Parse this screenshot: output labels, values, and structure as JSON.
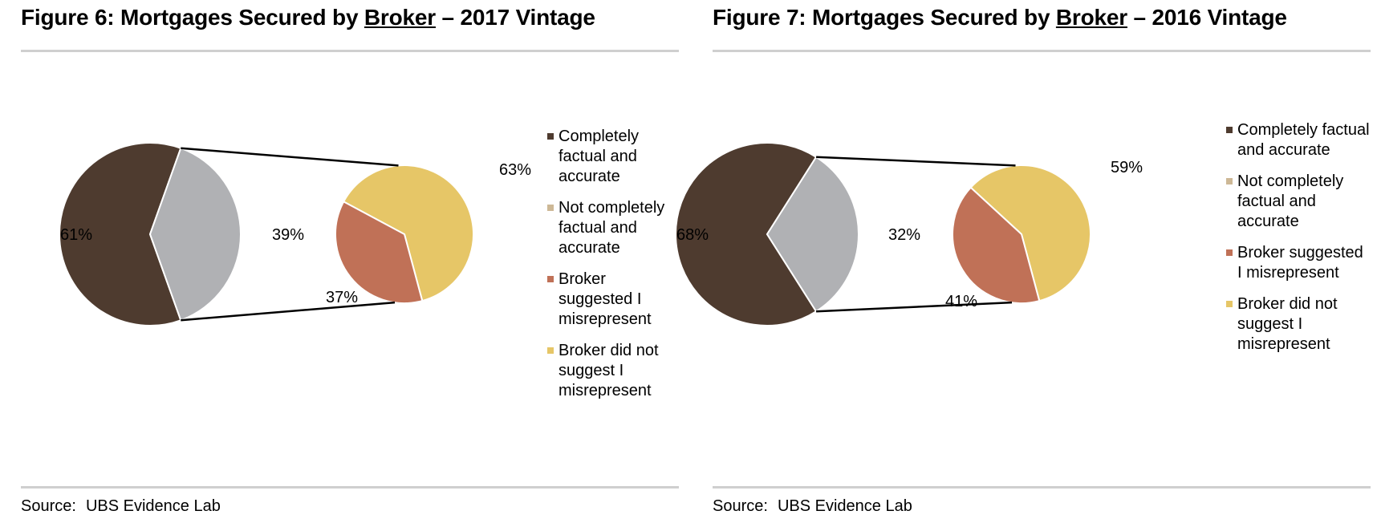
{
  "figures": [
    {
      "title_prefix": "Figure 6:  Mortgages Secured by ",
      "title_underlined": "Broker",
      "title_suffix": " – 2017 Vintage",
      "source_label": "Source:",
      "source_text": "UBS Evidence Lab"
    },
    {
      "title_prefix": "Figure 7: Mortgages Secured by ",
      "title_underlined": "Broker",
      "title_suffix": " – 2016 Vintage",
      "source_label": "Source:",
      "source_text": "UBS Evidence Lab"
    }
  ],
  "legend": [
    {
      "label": "Completely factual and accurate",
      "color": "#4e3b2f"
    },
    {
      "label": "Not completely factual and accurate",
      "color": "#cdb896"
    },
    {
      "label": "Broker suggested I misrepresent",
      "color": "#c07157"
    },
    {
      "label": "Broker did not suggest I misrepresent",
      "color": "#e6c667"
    }
  ],
  "chart_data": [
    {
      "type": "pie",
      "subtype": "pie-of-pie",
      "main_pie": {
        "labels": [
          "Completely factual and accurate",
          "Not completely factual and accurate"
        ],
        "values": [
          61,
          39
        ],
        "value_labels": [
          "61%",
          "39%"
        ],
        "colors": [
          "#4e3b2f",
          "#b0b1b4"
        ]
      },
      "secondary_pie": {
        "labels": [
          "Broker suggested I misrepresent",
          "Broker did not suggest I misrepresent"
        ],
        "values": [
          37,
          63
        ],
        "value_labels": [
          "37%",
          "63%"
        ],
        "colors": [
          "#c07157",
          "#e6c667"
        ]
      },
      "legend_position": "right"
    },
    {
      "type": "pie",
      "subtype": "pie-of-pie",
      "main_pie": {
        "labels": [
          "Completely factual and accurate",
          "Not completely factual and accurate"
        ],
        "values": [
          68,
          32
        ],
        "value_labels": [
          "68%",
          "32%"
        ],
        "colors": [
          "#4e3b2f",
          "#b0b1b4"
        ]
      },
      "secondary_pie": {
        "labels": [
          "Broker suggested I misrepresent",
          "Broker did not suggest I misrepresent"
        ],
        "values": [
          41,
          59
        ],
        "value_labels": [
          "41%",
          "59%"
        ],
        "colors": [
          "#c07157",
          "#e6c667"
        ]
      },
      "legend_position": "right"
    }
  ]
}
